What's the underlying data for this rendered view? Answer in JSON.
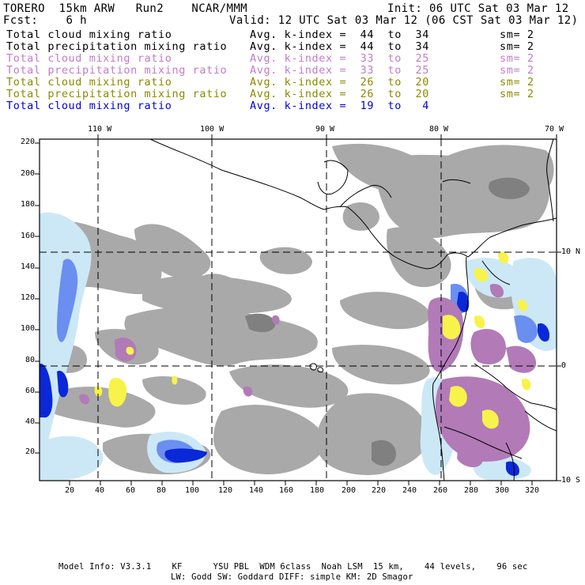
{
  "header": {
    "model": "TORERO  15km ARW   Run2    NCAR/MMM",
    "init": "Init: 06 UTC Sat 03 Mar 12",
    "fcst": "Fcst:    6 h",
    "valid": "Valid: 12 UTC Sat 03 Mar 12 (06 CST Sat 03 Mar 12)"
  },
  "legend": [
    {
      "field": "Total cloud mixing ratio",
      "kidx": "Avg. k-index =  44  to  34",
      "sm": "sm= 2",
      "color": "#000000"
    },
    {
      "field": "Total precipitation mixing ratio",
      "kidx": "Avg. k-index =  44  to  34",
      "sm": "sm= 2",
      "color": "#000000"
    },
    {
      "field": "Total cloud mixing ratio",
      "kidx": "Avg. k-index =  33  to  25",
      "sm": "sm= 2",
      "color": "#c27cc7"
    },
    {
      "field": "Total precipitation mixing ratio",
      "kidx": "Avg. k-index =  33  to  25",
      "sm": "sm= 2",
      "color": "#c27cc7"
    },
    {
      "field": "Total cloud mixing ratio",
      "kidx": "Avg. k-index =  26  to  20",
      "sm": "sm= 2",
      "color": "#8a8a00"
    },
    {
      "field": "Total precipitation mixing ratio",
      "kidx": "Avg. k-index =  26  to  20",
      "sm": "sm= 2",
      "color": "#8a8a00"
    },
    {
      "field": "Total cloud mixing ratio",
      "kidx": "Avg. k-index =  19  to   4",
      "sm": "",
      "color": "#0000dd"
    }
  ],
  "axes": {
    "lon_labels": [
      "110 W",
      "100 W",
      "90 W",
      "80 W",
      "70 W"
    ],
    "lat_labels": [
      "10 N",
      "0",
      "10 S"
    ],
    "y_ticks": [
      "220",
      "200",
      "180",
      "160",
      "140",
      "120",
      "100",
      "80",
      "60",
      "40",
      "20"
    ],
    "x_ticks": [
      "20",
      "40",
      "60",
      "80",
      "100",
      "120",
      "140",
      "160",
      "180",
      "200",
      "220",
      "240",
      "260",
      "280",
      "300",
      "320"
    ]
  },
  "colors": {
    "cloud_gray": "#a9a9a9",
    "dark_gray": "#808080",
    "purple": "#b27ab7",
    "yellow": "#f7f34a",
    "light_blue": "#cce8f7",
    "mid_blue": "#6a8ff0",
    "deep_blue": "#0a28d8"
  },
  "footer": {
    "line1": "Model Info: V3.3.1    KF      YSU PBL  WDM 6class  Noah LSM  15 km,    44 levels,    96 sec",
    "line2": "LW: Godd SW: Goddard DIFF: simple KM: 2D Smagor"
  }
}
